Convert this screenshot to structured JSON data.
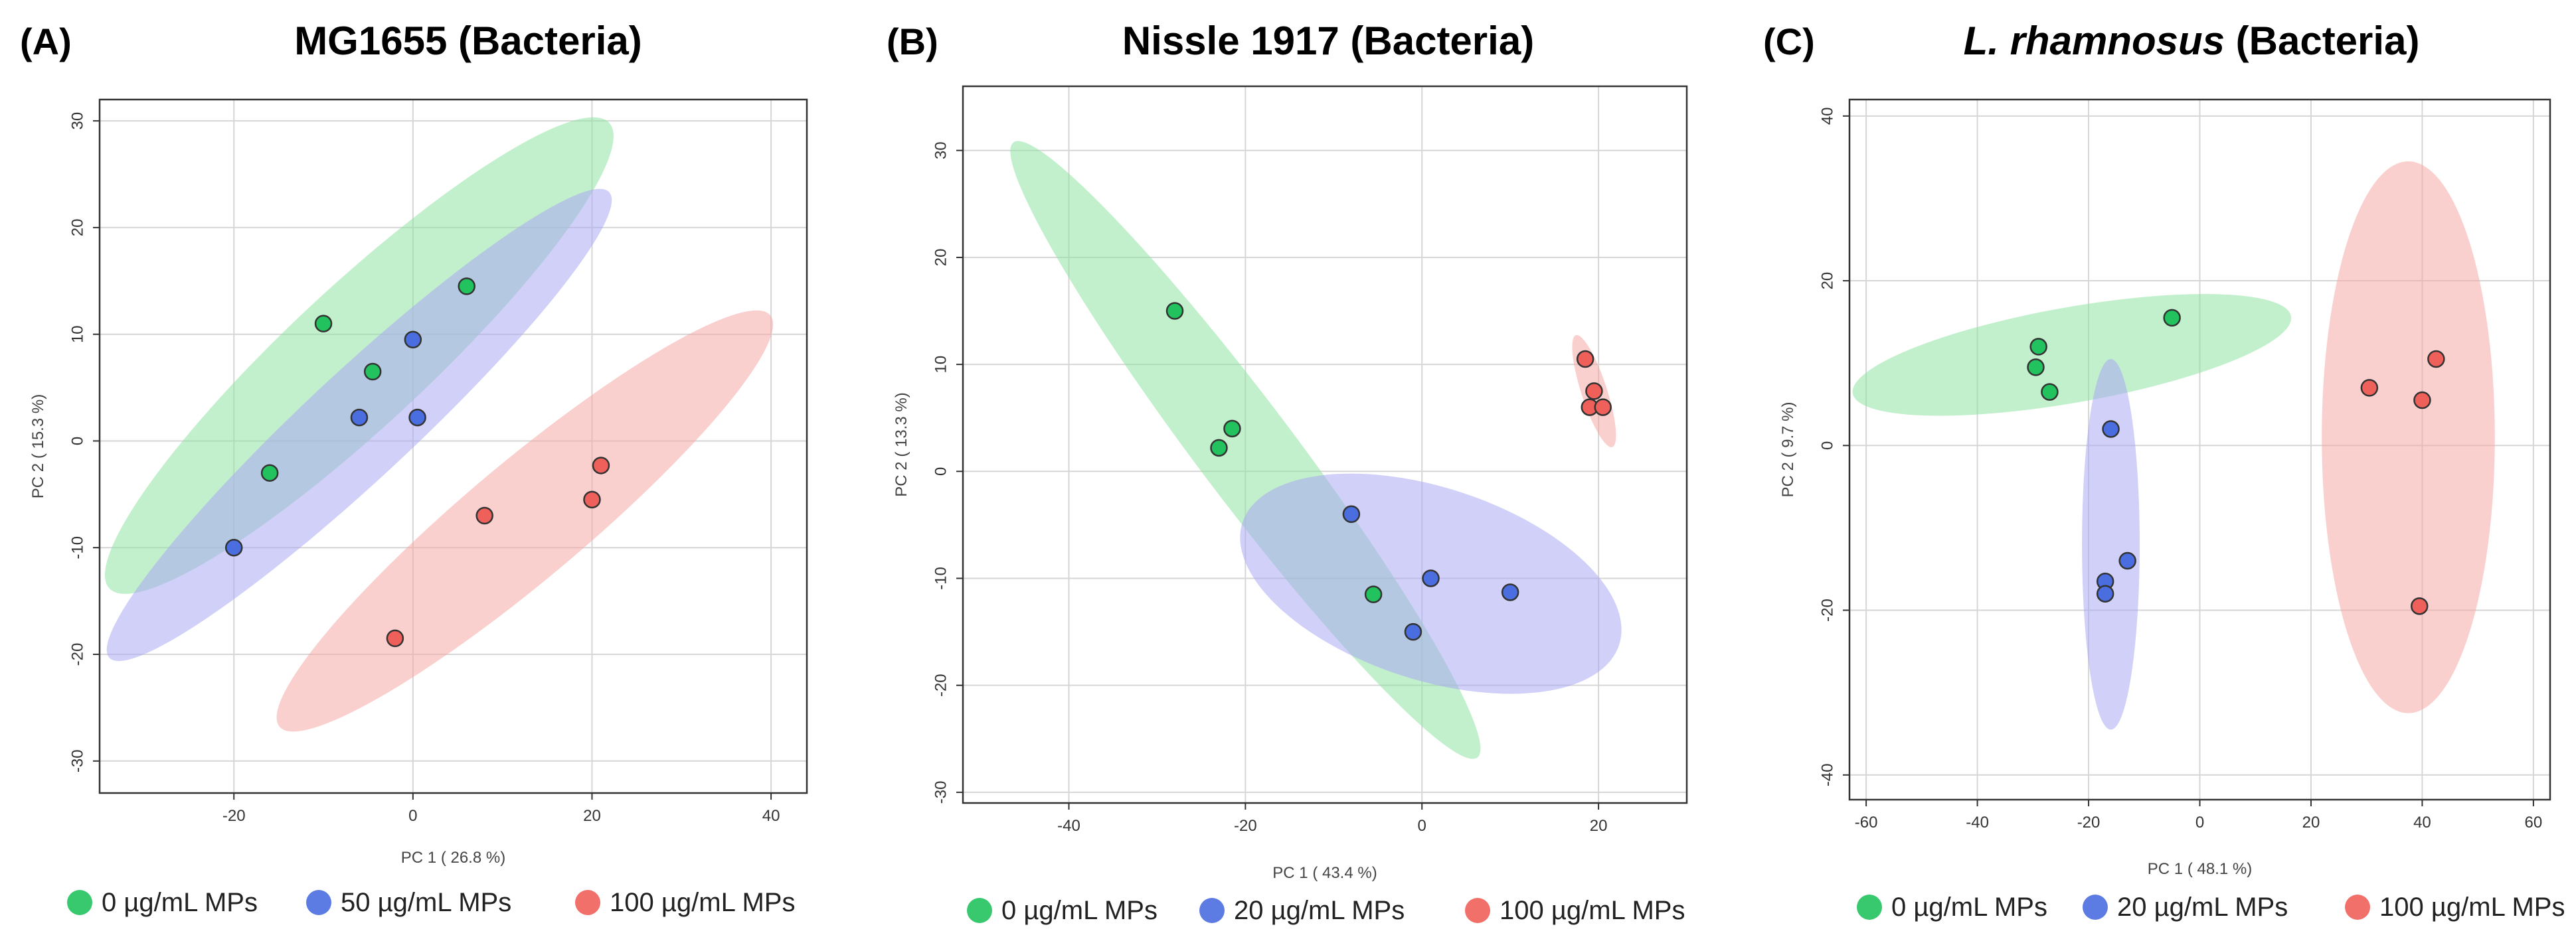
{
  "figure": {
    "series_colors": {
      "green_fill": "#8fe3a3",
      "green_point": "#22c25e",
      "blue_fill": "#a9a9f2",
      "blue_point": "#4a6ee0",
      "red_fill": "#f6a9a6",
      "red_point": "#f0605a",
      "overlap_fill": "#5fa9c9"
    }
  },
  "chart_data": [
    {
      "type": "scatter",
      "panel_label": "(A)",
      "title": "MG1655 (Bacteria)",
      "title_italic": "",
      "title_rest": "",
      "xlabel": "PC 1 ( 26.8 %)",
      "ylabel": "PC 2 ( 15.3 %)",
      "xlim": [
        -35,
        44
      ],
      "ylim": [
        -33,
        32
      ],
      "xticks": [
        -20,
        0,
        20,
        40
      ],
      "yticks": [
        -30,
        -20,
        -10,
        0,
        10,
        20,
        30
      ],
      "grid": true,
      "series": [
        {
          "name": "0 µg/mL MPs",
          "color": "green",
          "points": [
            [
              -10,
              11
            ],
            [
              -4.5,
              6.5
            ],
            [
              6,
              14.5
            ],
            [
              -16,
              -3
            ]
          ],
          "ellipse": {
            "cx": -6,
            "cy": 8,
            "rx": 32,
            "ry": 6.5,
            "angle_deg": 43
          }
        },
        {
          "name": "50 µg/mL MPs",
          "color": "blue",
          "points": [
            [
              -20,
              -10
            ],
            [
              -6,
              2.2
            ],
            [
              0,
              9.5
            ],
            [
              0.5,
              2.2
            ]
          ],
          "ellipse": {
            "cx": -6,
            "cy": 1.5,
            "rx": 32,
            "ry": 5,
            "angle_deg": 43
          }
        },
        {
          "name": "100 µg/mL MPs",
          "color": "red",
          "points": [
            [
              -2,
              -18.5
            ],
            [
              8,
              -7
            ],
            [
              20,
              -5.5
            ],
            [
              21,
              -2.3
            ]
          ],
          "ellipse": {
            "cx": 12.5,
            "cy": -7.5,
            "rx": 30,
            "ry": 5.5,
            "angle_deg": 40
          }
        }
      ],
      "legend": [
        "0 µg/mL MPs",
        "50 µg/mL MPs",
        "100 µg/mL MPs"
      ]
    },
    {
      "type": "scatter",
      "panel_label": "(B)",
      "title": "Nissle 1917 (Bacteria)",
      "title_italic": "",
      "title_rest": "",
      "xlabel": "PC 1 ( 43.4 %)",
      "ylabel": "PC 2 ( 13.3 %)",
      "xlim": [
        -52,
        30
      ],
      "ylim": [
        -31,
        36
      ],
      "xticks": [
        -40,
        -20,
        0,
        20
      ],
      "yticks": [
        -30,
        -20,
        -10,
        0,
        10,
        20,
        30
      ],
      "grid": true,
      "series": [
        {
          "name": "0 µg/mL MPs",
          "color": "green",
          "points": [
            [
              -28,
              15
            ],
            [
              -21.5,
              4
            ],
            [
              -23,
              2.2
            ],
            [
              -5.5,
              -11.5
            ]
          ],
          "ellipse": {
            "cx": -20,
            "cy": 2,
            "rx": 36,
            "ry": 4.5,
            "angle_deg": -53
          }
        },
        {
          "name": "20 µg/mL MPs",
          "color": "blue",
          "points": [
            [
              -8,
              -4
            ],
            [
              1,
              -10
            ],
            [
              -1,
              -15
            ],
            [
              10,
              -11.3
            ]
          ],
          "ellipse": {
            "cx": 1,
            "cy": -10.5,
            "rx": 18.5,
            "ry": 9,
            "angle_deg": -18
          }
        },
        {
          "name": "100 µg/mL MPs",
          "color": "red",
          "points": [
            [
              18.5,
              10.5
            ],
            [
              19.5,
              7.5
            ],
            [
              19,
              6
            ],
            [
              20.5,
              6
            ]
          ],
          "ellipse": {
            "cx": 19.5,
            "cy": 7.5,
            "rx": 5.5,
            "ry": 1.2,
            "angle_deg": -72
          }
        }
      ],
      "legend": [
        "0 µg/mL MPs",
        "20 µg/mL MPs",
        "100 µg/mL MPs"
      ]
    },
    {
      "type": "scatter",
      "panel_label": "(C)",
      "title": "L. rhamnosus (Bacteria)",
      "title_italic": "L. rhamnosus",
      "title_rest": " (Bacteria)",
      "xlabel": "PC 1 ( 48.1 %)",
      "ylabel": "PC 2 ( 9.7 %)",
      "xlim": [
        -63,
        63
      ],
      "ylim": [
        -43,
        42
      ],
      "xticks": [
        -60,
        -40,
        -20,
        0,
        20,
        40,
        60
      ],
      "yticks": [
        -40,
        -20,
        0,
        20,
        40
      ],
      "grid": true,
      "series": [
        {
          "name": "0 µg/mL MPs",
          "color": "green",
          "points": [
            [
              -29,
              12
            ],
            [
              -29.5,
              9.5
            ],
            [
              -27,
              6.5
            ],
            [
              -5,
              15.5
            ]
          ],
          "ellipse": {
            "cx": -23,
            "cy": 11,
            "rx": 27,
            "ry": 5.8,
            "angle_deg": 10
          }
        },
        {
          "name": "20 µg/mL MPs",
          "color": "blue",
          "points": [
            [
              -16,
              2
            ],
            [
              -17,
              -16.5
            ],
            [
              -17,
              -18
            ],
            [
              -13,
              -14
            ]
          ],
          "ellipse": {
            "cx": -16,
            "cy": -12,
            "rx": 3.5,
            "ry": 22.5,
            "angle_deg": 0
          }
        },
        {
          "name": "100 µg/mL MPs",
          "color": "red",
          "points": [
            [
              30.5,
              7
            ],
            [
              40,
              5.5
            ],
            [
              42.5,
              10.5
            ],
            [
              39.5,
              -19.5
            ]
          ],
          "ellipse": {
            "cx": 37.5,
            "cy": 1,
            "rx": 10.5,
            "ry": 33.5,
            "angle_deg": 0
          }
        }
      ],
      "legend": [
        "0 µg/mL MPs",
        "20 µg/mL MPs",
        "100 µg/mL MPs"
      ]
    }
  ]
}
